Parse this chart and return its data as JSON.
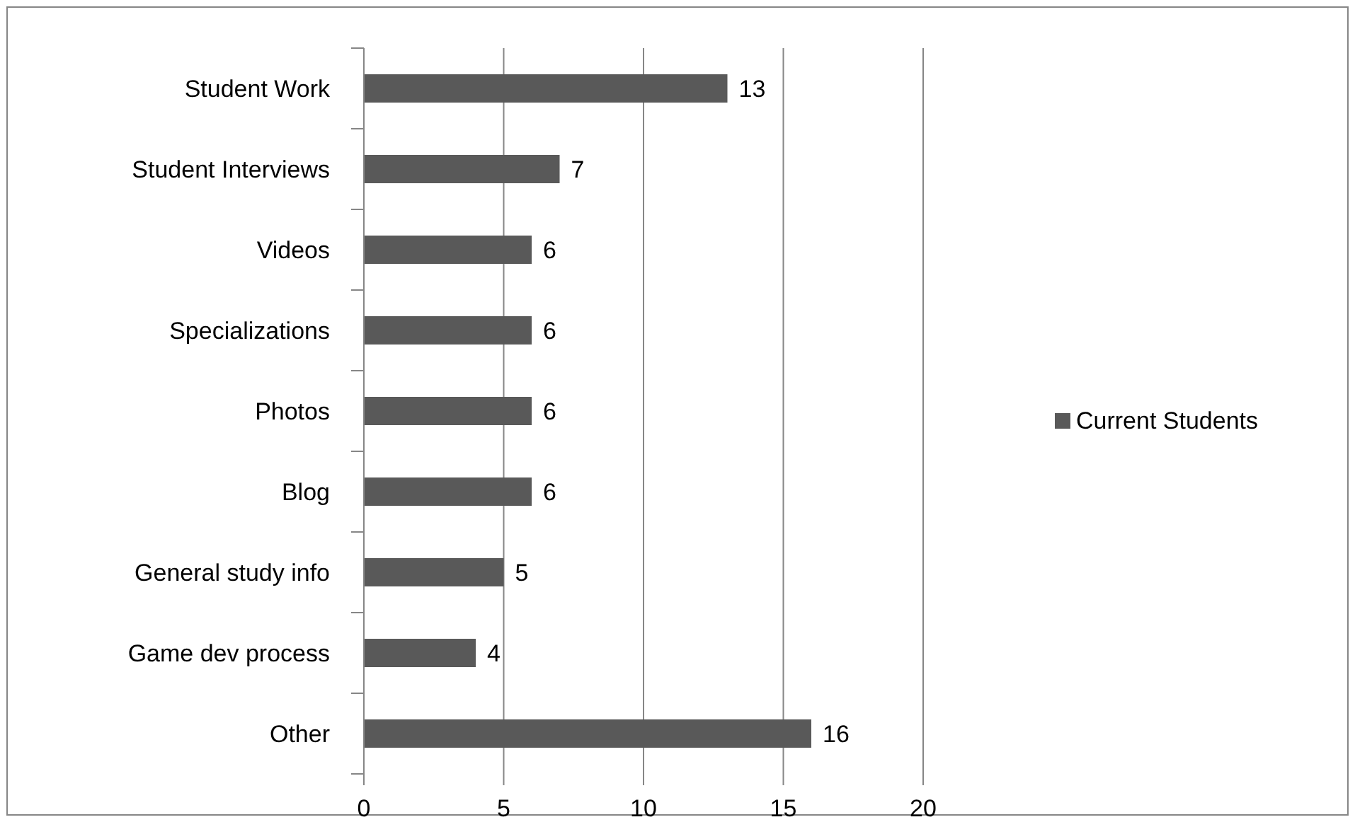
{
  "chart_data": {
    "type": "bar",
    "orientation": "horizontal",
    "categories": [
      "Student Work",
      "Student Interviews",
      "Videos",
      "Specializations",
      "Photos",
      "Blog",
      "General study info",
      "Game dev process",
      "Other"
    ],
    "series": [
      {
        "name": "Current Students",
        "color": "#595959",
        "values": [
          13,
          7,
          6,
          6,
          6,
          6,
          5,
          4,
          16
        ]
      }
    ],
    "xlim": [
      0,
      20
    ],
    "xticks": [
      0,
      5,
      10,
      15,
      20
    ],
    "grid": "x",
    "legend": "right",
    "data_labels": true
  }
}
